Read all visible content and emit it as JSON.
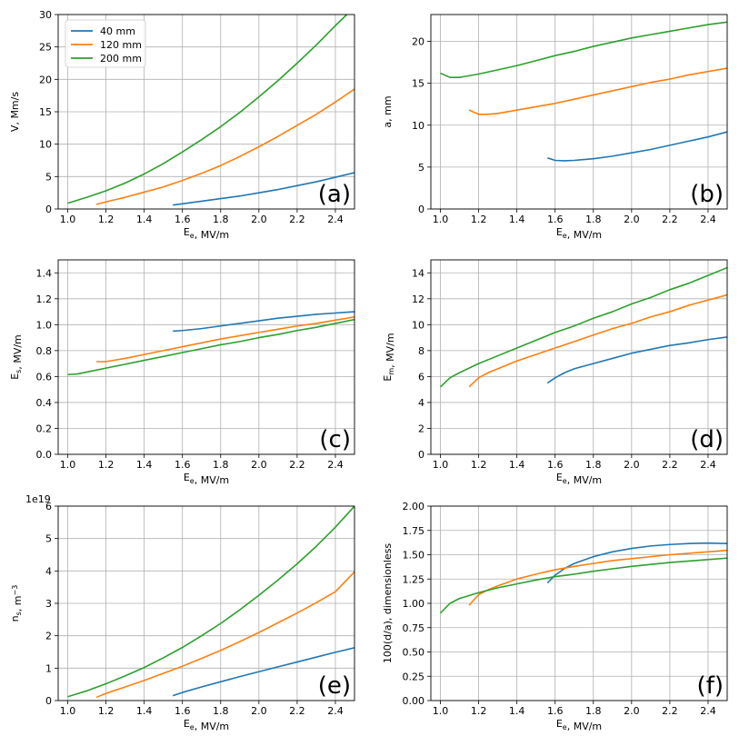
{
  "colors": {
    "40mm": "#1f77b4",
    "120mm": "#ff7f0e",
    "200mm": "#2ca02c",
    "grid": "#b0b0b0"
  },
  "chart_data": [
    {
      "id": "a",
      "type": "line",
      "panel_label": "(a)",
      "xlabel": "E_e, MV/m",
      "ylabel": "V, Mm/s",
      "xlim": [
        0.95,
        2.5
      ],
      "ylim": [
        0,
        30
      ],
      "xticks": [
        "1.0",
        "1.2",
        "1.4",
        "1.6",
        "1.8",
        "2.0",
        "2.2",
        "2.4"
      ],
      "yticks": [
        "0",
        "5",
        "10",
        "15",
        "20",
        "25",
        "30"
      ],
      "legend": {
        "position": "top-left",
        "entries": [
          "40 mm",
          "120 mm",
          "200 mm"
        ]
      },
      "series": [
        {
          "name": "40 mm",
          "color_key": "40mm",
          "x": [
            1.55,
            1.7,
            1.8,
            1.9,
            2.0,
            2.1,
            2.2,
            2.3,
            2.4,
            2.5
          ],
          "y": [
            0.6,
            1.2,
            1.6,
            2.0,
            2.5,
            3.0,
            3.6,
            4.2,
            4.9,
            5.6
          ]
        },
        {
          "name": "120 mm",
          "color_key": "120mm",
          "x": [
            1.15,
            1.2,
            1.3,
            1.4,
            1.5,
            1.6,
            1.7,
            1.8,
            1.9,
            2.0,
            2.1,
            2.2,
            2.3,
            2.4,
            2.5
          ],
          "y": [
            0.7,
            1.1,
            1.8,
            2.6,
            3.4,
            4.4,
            5.5,
            6.7,
            8.1,
            9.6,
            11.2,
            12.9,
            14.6,
            16.5,
            18.5
          ]
        },
        {
          "name": "200 mm",
          "color_key": "200mm",
          "x": [
            1.0,
            1.1,
            1.2,
            1.3,
            1.4,
            1.5,
            1.6,
            1.7,
            1.8,
            1.9,
            2.0,
            2.1,
            2.2,
            2.3,
            2.4,
            2.46
          ],
          "y": [
            0.9,
            1.8,
            2.8,
            4.0,
            5.4,
            7.0,
            8.8,
            10.7,
            12.7,
            14.9,
            17.3,
            19.8,
            22.5,
            25.3,
            28.3,
            30.0
          ]
        }
      ]
    },
    {
      "id": "b",
      "type": "line",
      "panel_label": "(b)",
      "xlabel": "E_e, MV/m",
      "ylabel": "a, mm",
      "xlim": [
        0.95,
        2.5
      ],
      "ylim": [
        0,
        23.2
      ],
      "xticks": [
        "1.0",
        "1.2",
        "1.4",
        "1.6",
        "1.8",
        "2.0",
        "2.2",
        "2.4"
      ],
      "yticks": [
        "0",
        "5",
        "10",
        "15",
        "20"
      ],
      "series": [
        {
          "name": "40 mm",
          "color_key": "40mm",
          "x": [
            1.56,
            1.6,
            1.65,
            1.7,
            1.8,
            1.9,
            2.0,
            2.1,
            2.2,
            2.3,
            2.4,
            2.5
          ],
          "y": [
            6.1,
            5.8,
            5.75,
            5.8,
            6.0,
            6.3,
            6.7,
            7.1,
            7.6,
            8.1,
            8.6,
            9.2
          ]
        },
        {
          "name": "120 mm",
          "color_key": "120mm",
          "x": [
            1.15,
            1.2,
            1.25,
            1.3,
            1.4,
            1.5,
            1.6,
            1.7,
            1.8,
            1.9,
            2.0,
            2.1,
            2.2,
            2.3,
            2.4,
            2.5
          ],
          "y": [
            11.8,
            11.3,
            11.3,
            11.4,
            11.8,
            12.2,
            12.6,
            13.1,
            13.6,
            14.1,
            14.6,
            15.1,
            15.5,
            16.0,
            16.4,
            16.8
          ]
        },
        {
          "name": "200 mm",
          "color_key": "200mm",
          "x": [
            1.0,
            1.05,
            1.1,
            1.2,
            1.3,
            1.4,
            1.5,
            1.6,
            1.7,
            1.8,
            1.9,
            2.0,
            2.1,
            2.2,
            2.3,
            2.4,
            2.5
          ],
          "y": [
            16.2,
            15.7,
            15.7,
            16.1,
            16.6,
            17.1,
            17.7,
            18.3,
            18.8,
            19.4,
            19.9,
            20.4,
            20.8,
            21.2,
            21.6,
            22.0,
            22.3
          ]
        }
      ]
    },
    {
      "id": "c",
      "type": "line",
      "panel_label": "(c)",
      "xlabel": "E_e, MV/m",
      "ylabel": "E_s, MV/m",
      "xlim": [
        0.95,
        2.5
      ],
      "ylim": [
        0,
        1.5
      ],
      "xticks": [
        "1.0",
        "1.2",
        "1.4",
        "1.6",
        "1.8",
        "2.0",
        "2.2",
        "2.4"
      ],
      "yticks": [
        "0.0",
        "0.2",
        "0.4",
        "0.6",
        "0.8",
        "1.0",
        "1.2",
        "1.4"
      ],
      "series": [
        {
          "name": "40 mm",
          "color_key": "40mm",
          "x": [
            1.55,
            1.6,
            1.7,
            1.8,
            1.9,
            2.0,
            2.1,
            2.2,
            2.3,
            2.4,
            2.5
          ],
          "y": [
            0.95,
            0.955,
            0.97,
            0.99,
            1.01,
            1.03,
            1.05,
            1.065,
            1.08,
            1.09,
            1.1
          ]
        },
        {
          "name": "120 mm",
          "color_key": "120mm",
          "x": [
            1.15,
            1.2,
            1.3,
            1.4,
            1.5,
            1.6,
            1.7,
            1.8,
            1.9,
            2.0,
            2.1,
            2.2,
            2.3,
            2.4,
            2.5
          ],
          "y": [
            0.715,
            0.715,
            0.74,
            0.77,
            0.8,
            0.83,
            0.86,
            0.89,
            0.915,
            0.94,
            0.965,
            0.99,
            1.01,
            1.035,
            1.06
          ]
        },
        {
          "name": "200 mm",
          "color_key": "200mm",
          "x": [
            1.0,
            1.05,
            1.1,
            1.2,
            1.3,
            1.4,
            1.5,
            1.6,
            1.7,
            1.8,
            1.9,
            2.0,
            2.1,
            2.2,
            2.3,
            2.4,
            2.5
          ],
          "y": [
            0.615,
            0.62,
            0.635,
            0.665,
            0.695,
            0.725,
            0.755,
            0.785,
            0.815,
            0.845,
            0.87,
            0.9,
            0.925,
            0.955,
            0.98,
            1.01,
            1.04
          ]
        }
      ]
    },
    {
      "id": "d",
      "type": "line",
      "panel_label": "(d)",
      "xlabel": "E_e, MV/m",
      "ylabel": "E_m, MV/m",
      "xlim": [
        0.95,
        2.5
      ],
      "ylim": [
        0,
        15
      ],
      "xticks": [
        "1.0",
        "1.2",
        "1.4",
        "1.6",
        "1.8",
        "2.0",
        "2.2",
        "2.4"
      ],
      "yticks": [
        "0",
        "2",
        "4",
        "6",
        "8",
        "10",
        "12",
        "14"
      ],
      "series": [
        {
          "name": "40 mm",
          "color_key": "40mm",
          "x": [
            1.56,
            1.6,
            1.65,
            1.7,
            1.8,
            1.9,
            2.0,
            2.1,
            2.2,
            2.3,
            2.4,
            2.5
          ],
          "y": [
            5.5,
            5.9,
            6.3,
            6.6,
            7.0,
            7.4,
            7.8,
            8.1,
            8.4,
            8.6,
            8.85,
            9.05
          ]
        },
        {
          "name": "120 mm",
          "color_key": "120mm",
          "x": [
            1.15,
            1.2,
            1.25,
            1.3,
            1.4,
            1.5,
            1.6,
            1.7,
            1.8,
            1.9,
            2.0,
            2.1,
            2.2,
            2.3,
            2.4,
            2.5
          ],
          "y": [
            5.2,
            5.9,
            6.3,
            6.6,
            7.2,
            7.7,
            8.2,
            8.7,
            9.2,
            9.7,
            10.1,
            10.6,
            11.0,
            11.5,
            11.9,
            12.3
          ]
        },
        {
          "name": "200 mm",
          "color_key": "200mm",
          "x": [
            1.0,
            1.05,
            1.1,
            1.2,
            1.3,
            1.4,
            1.5,
            1.6,
            1.7,
            1.8,
            1.9,
            2.0,
            2.1,
            2.2,
            2.3,
            2.4,
            2.5
          ],
          "y": [
            5.2,
            5.9,
            6.3,
            7.0,
            7.6,
            8.2,
            8.8,
            9.4,
            9.9,
            10.5,
            11.0,
            11.6,
            12.1,
            12.7,
            13.2,
            13.8,
            14.4
          ]
        }
      ]
    },
    {
      "id": "e",
      "type": "line",
      "panel_label": "(e)",
      "xlabel": "E_e, MV/m",
      "ylabel": "n_s, m^-3",
      "offset_text": "1e19",
      "xlim": [
        0.95,
        2.5
      ],
      "ylim": [
        0,
        6
      ],
      "xticks": [
        "1.0",
        "1.2",
        "1.4",
        "1.6",
        "1.8",
        "2.0",
        "2.2",
        "2.4"
      ],
      "yticks": [
        "0",
        "1",
        "2",
        "3",
        "4",
        "5",
        "6"
      ],
      "series": [
        {
          "name": "40 mm",
          "color_key": "40mm",
          "x": [
            1.55,
            1.6,
            1.7,
            1.8,
            1.9,
            2.0,
            2.1,
            2.2,
            2.3,
            2.4,
            2.5
          ],
          "y": [
            0.15,
            0.25,
            0.42,
            0.58,
            0.74,
            0.89,
            1.04,
            1.19,
            1.34,
            1.49,
            1.63
          ]
        },
        {
          "name": "120 mm",
          "color_key": "120mm",
          "x": [
            1.15,
            1.2,
            1.3,
            1.4,
            1.5,
            1.6,
            1.7,
            1.8,
            1.9,
            2.0,
            2.1,
            2.2,
            2.3,
            2.4,
            2.5
          ],
          "y": [
            0.1,
            0.22,
            0.42,
            0.62,
            0.84,
            1.06,
            1.3,
            1.55,
            1.82,
            2.1,
            2.4,
            2.7,
            3.02,
            3.36,
            3.97
          ]
        },
        {
          "name": "200 mm",
          "color_key": "200mm",
          "x": [
            1.0,
            1.1,
            1.2,
            1.3,
            1.4,
            1.5,
            1.6,
            1.7,
            1.8,
            1.9,
            2.0,
            2.1,
            2.2,
            2.3,
            2.4,
            2.5
          ],
          "y": [
            0.12,
            0.3,
            0.52,
            0.76,
            1.02,
            1.32,
            1.64,
            2.0,
            2.38,
            2.8,
            3.25,
            3.72,
            4.22,
            4.76,
            5.35,
            6.0
          ]
        }
      ]
    },
    {
      "id": "f",
      "type": "line",
      "panel_label": "(f)",
      "xlabel": "E_e, MV/m",
      "ylabel": "100(d/a), dimensionless",
      "xlim": [
        0.95,
        2.5
      ],
      "ylim": [
        0,
        2.0
      ],
      "xticks": [
        "1.0",
        "1.2",
        "1.4",
        "1.6",
        "1.8",
        "2.0",
        "2.2",
        "2.4"
      ],
      "yticks": [
        "0.00",
        "0.25",
        "0.50",
        "0.75",
        "1.00",
        "1.25",
        "1.50",
        "1.75",
        "2.00"
      ],
      "series": [
        {
          "name": "40 mm",
          "color_key": "40mm",
          "x": [
            1.56,
            1.6,
            1.65,
            1.7,
            1.8,
            1.9,
            2.0,
            2.1,
            2.2,
            2.3,
            2.4,
            2.5
          ],
          "y": [
            1.21,
            1.29,
            1.36,
            1.41,
            1.48,
            1.53,
            1.565,
            1.59,
            1.605,
            1.615,
            1.62,
            1.615
          ]
        },
        {
          "name": "120 mm",
          "color_key": "120mm",
          "x": [
            1.15,
            1.2,
            1.25,
            1.3,
            1.4,
            1.5,
            1.6,
            1.7,
            1.8,
            1.9,
            2.0,
            2.1,
            2.2,
            2.3,
            2.4,
            2.5
          ],
          "y": [
            0.98,
            1.09,
            1.14,
            1.18,
            1.25,
            1.3,
            1.345,
            1.38,
            1.41,
            1.44,
            1.46,
            1.48,
            1.5,
            1.515,
            1.53,
            1.545
          ]
        },
        {
          "name": "200 mm",
          "color_key": "200mm",
          "x": [
            1.0,
            1.05,
            1.1,
            1.2,
            1.3,
            1.4,
            1.5,
            1.6,
            1.7,
            1.8,
            1.9,
            2.0,
            2.1,
            2.2,
            2.3,
            2.4,
            2.5
          ],
          "y": [
            0.9,
            1.0,
            1.05,
            1.11,
            1.16,
            1.2,
            1.24,
            1.275,
            1.3,
            1.33,
            1.355,
            1.38,
            1.4,
            1.42,
            1.435,
            1.45,
            1.465
          ]
        }
      ]
    }
  ]
}
